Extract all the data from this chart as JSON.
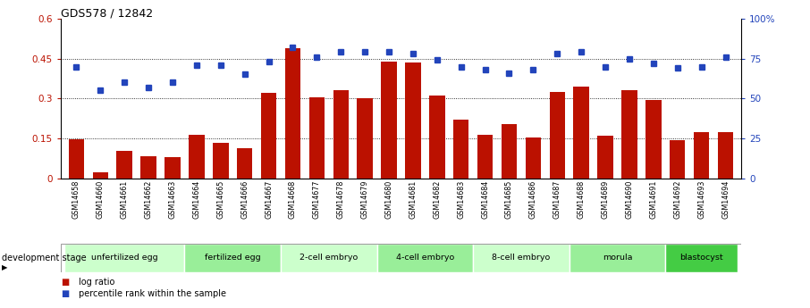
{
  "title": "GDS578 / 12842",
  "samples": [
    "GSM14658",
    "GSM14660",
    "GSM14661",
    "GSM14662",
    "GSM14663",
    "GSM14664",
    "GSM14665",
    "GSM14666",
    "GSM14667",
    "GSM14668",
    "GSM14677",
    "GSM14678",
    "GSM14679",
    "GSM14680",
    "GSM14681",
    "GSM14682",
    "GSM14683",
    "GSM14684",
    "GSM14685",
    "GSM14686",
    "GSM14687",
    "GSM14688",
    "GSM14689",
    "GSM14690",
    "GSM14691",
    "GSM14692",
    "GSM14693",
    "GSM14694"
  ],
  "log_ratio": [
    0.148,
    0.025,
    0.105,
    0.085,
    0.08,
    0.165,
    0.135,
    0.115,
    0.32,
    0.49,
    0.305,
    0.33,
    0.3,
    0.44,
    0.435,
    0.31,
    0.22,
    0.165,
    0.205,
    0.155,
    0.325,
    0.345,
    0.16,
    0.33,
    0.295,
    0.145,
    0.175,
    0.175
  ],
  "percentile": [
    70,
    55,
    60,
    57,
    60,
    71,
    71,
    65,
    73,
    82,
    76,
    79,
    79,
    79,
    78,
    74,
    70,
    68,
    66,
    68,
    78,
    79,
    70,
    75,
    72,
    69,
    70,
    76
  ],
  "stages": [
    {
      "label": "unfertilized egg",
      "start": 0,
      "end": 5,
      "color": "#ccffcc"
    },
    {
      "label": "fertilized egg",
      "start": 5,
      "end": 9,
      "color": "#99ee99"
    },
    {
      "label": "2-cell embryo",
      "start": 9,
      "end": 13,
      "color": "#ccffcc"
    },
    {
      "label": "4-cell embryo",
      "start": 13,
      "end": 17,
      "color": "#99ee99"
    },
    {
      "label": "8-cell embryo",
      "start": 17,
      "end": 21,
      "color": "#ccffcc"
    },
    {
      "label": "morula",
      "start": 21,
      "end": 25,
      "color": "#99ee99"
    },
    {
      "label": "blastocyst",
      "start": 25,
      "end": 28,
      "color": "#44cc44"
    }
  ],
  "bar_color": "#bb1100",
  "dot_color": "#2244bb",
  "ylim_left": [
    0,
    0.6
  ],
  "ylim_right": [
    0,
    100
  ],
  "yticks_left": [
    0,
    0.15,
    0.3,
    0.45,
    0.6
  ],
  "yticks_right": [
    0,
    25,
    50,
    75,
    100
  ],
  "legend_bar": "log ratio",
  "legend_dot": "percentile rank within the sample",
  "dev_stage_label": "development stage"
}
